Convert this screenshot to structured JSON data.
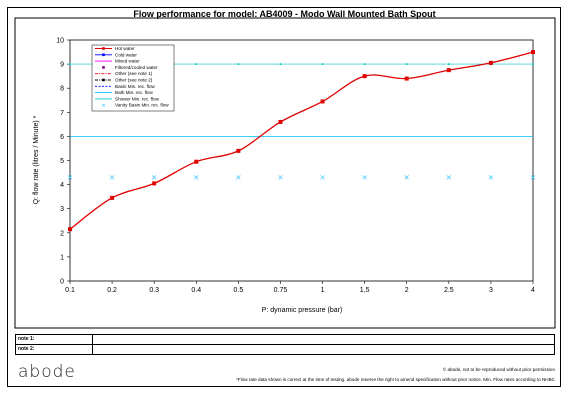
{
  "chart_data": {
    "type": "line",
    "title": "Flow performance for model: AB4009 - Modo Wall Mounted Bath Spout",
    "xlabel": "P: dynamic pressure (bar)",
    "ylabel": "Q: flow rate (litres / Minute) *",
    "categories": [
      "0.1",
      "0.2",
      "0.3",
      "0.4",
      "0.5",
      "0.75",
      "1",
      "1.5",
      "2",
      "2.5",
      "3",
      "4"
    ],
    "ylim": [
      0,
      10
    ],
    "yticks": [
      "0",
      "1",
      "2",
      "3",
      "4",
      "5",
      "6",
      "7",
      "8",
      "9",
      "10"
    ],
    "grid": false,
    "legend_position": "top-left",
    "legend": [
      {
        "name": "Hot water",
        "color": "#e00000",
        "style": "solid-square"
      },
      {
        "name": "Cold water",
        "color": "#0000ff",
        "style": "solid-square"
      },
      {
        "name": "Mixed water",
        "color": "#ff00ff",
        "style": "solid"
      },
      {
        "name": "Filtered/cooled water",
        "color": "#7f007f",
        "style": "marker"
      },
      {
        "name": "Other (see note 1)",
        "color": "#e00000",
        "style": "dash-dot"
      },
      {
        "name": "Other (see note 2)",
        "color": "#000000",
        "style": "dash-dot-marker"
      },
      {
        "name": "Basin Min. rec. flow",
        "color": "#0000ff",
        "style": "dashed"
      },
      {
        "name": "Bath Min. rec. flow",
        "color": "#00bfff",
        "style": "solid"
      },
      {
        "name": "Shower Min. rec. flow",
        "color": "#00c8c8",
        "style": "solid"
      },
      {
        "name": "Vanity Basin Min. rec. flow",
        "color": "#3ec6ff",
        "style": "x-marker"
      }
    ],
    "series": [
      {
        "name": "Hot water",
        "color": "#e00000",
        "values": [
          2.15,
          3.45,
          4.05,
          4.95,
          5.4,
          6.6,
          7.45,
          8.5,
          8.4,
          8.75,
          9.05,
          9.5
        ]
      },
      {
        "name": "Bath Min. rec. flow",
        "color": "#00bfff",
        "values": [
          6,
          6,
          6,
          6,
          6,
          6,
          6,
          6,
          6,
          6,
          6,
          6
        ]
      },
      {
        "name": "Shower Min. rec. flow",
        "color": "#00c8c8",
        "values": [
          9,
          9,
          9,
          9,
          9,
          9,
          9,
          9,
          9,
          9,
          9,
          9
        ]
      },
      {
        "name": "Vanity Basin Min. rec. flow",
        "color": "#3ec6ff",
        "values": [
          4.3,
          4.3,
          4.3,
          4.3,
          4.3,
          4.3,
          4.3,
          4.3,
          4.3,
          4.3,
          4.3,
          4.3
        ]
      }
    ]
  },
  "notes": {
    "note1_label": "note 1:",
    "note1_value": "",
    "note2_label": "note 2:",
    "note2_value": ""
  },
  "footer": {
    "logo": "abode",
    "copyright": "© abode, not to be reproduced without prior permission",
    "disclaimer": "*Flow rate data shown is correct at the time of testing. abode reserve the right to amend specification without prior notice. Min. Flow rates according to NHBC"
  }
}
